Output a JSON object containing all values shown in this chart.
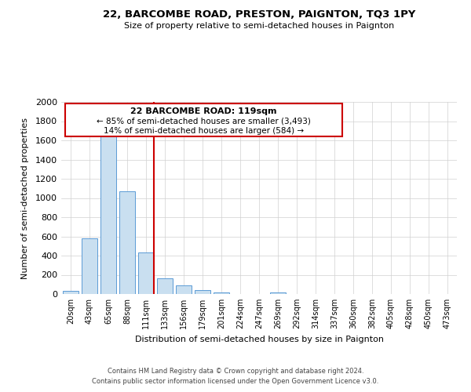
{
  "title": "22, BARCOMBE ROAD, PRESTON, PAIGNTON, TQ3 1PY",
  "subtitle": "Size of property relative to semi-detached houses in Paignton",
  "xlabel": "Distribution of semi-detached houses by size in Paignton",
  "ylabel": "Number of semi-detached properties",
  "categories": [
    "20sqm",
    "43sqm",
    "65sqm",
    "88sqm",
    "111sqm",
    "133sqm",
    "156sqm",
    "179sqm",
    "201sqm",
    "224sqm",
    "247sqm",
    "269sqm",
    "292sqm",
    "314sqm",
    "337sqm",
    "360sqm",
    "382sqm",
    "405sqm",
    "428sqm",
    "450sqm",
    "473sqm"
  ],
  "values": [
    30,
    580,
    1670,
    1070,
    430,
    160,
    90,
    40,
    20,
    0,
    0,
    20,
    0,
    0,
    0,
    0,
    0,
    0,
    0,
    0,
    0
  ],
  "bar_color": "#c9dff0",
  "bar_edge_color": "#5b9bd5",
  "vline_index": 4,
  "vline_color": "#cc0000",
  "ylim": [
    0,
    2000
  ],
  "yticks": [
    0,
    200,
    400,
    600,
    800,
    1000,
    1200,
    1400,
    1600,
    1800,
    2000
  ],
  "annotation_title": "22 BARCOMBE ROAD: 119sqm",
  "annotation_line1": "← 85% of semi-detached houses are smaller (3,493)",
  "annotation_line2": "14% of semi-detached houses are larger (584) →",
  "annotation_box_color": "#cc0000",
  "footer_line1": "Contains HM Land Registry data © Crown copyright and database right 2024.",
  "footer_line2": "Contains public sector information licensed under the Open Government Licence v3.0.",
  "background_color": "#ffffff",
  "grid_color": "#d0d0d0"
}
